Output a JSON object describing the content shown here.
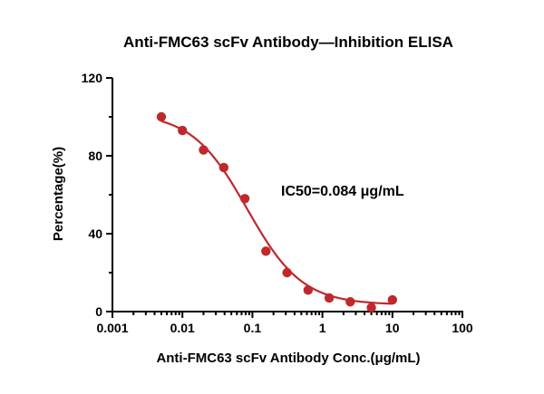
{
  "chart_data": {
    "type": "scatter",
    "title": "Anti-FMC63 scFv Antibody—Inhibition ELISA",
    "xlabel": "Anti-FMC63 scFv Antibody Conc.(μg/mL)",
    "ylabel": "Percentage(%)",
    "x_scale": "log",
    "xlim": [
      0.001,
      100
    ],
    "ylim": [
      0,
      120
    ],
    "x_ticks": [
      "0.001",
      "0.01",
      "0.1",
      "1",
      "10",
      "100"
    ],
    "x_tick_values": [
      0.001,
      0.01,
      0.1,
      1,
      10,
      100
    ],
    "y_ticks": [
      "0",
      "40",
      "80",
      "120"
    ],
    "y_tick_values": [
      0,
      40,
      80,
      120
    ],
    "grid": false,
    "series": [
      {
        "color": "#c0282d",
        "x": [
          0.005,
          0.01,
          0.02,
          0.039,
          0.078,
          0.156,
          0.3125,
          0.625,
          1.25,
          2.5,
          5,
          10
        ],
        "y": [
          100,
          93,
          83,
          74,
          58,
          31,
          20,
          11,
          7,
          5,
          2,
          6
        ],
        "fit": {
          "model": "4PL",
          "top": 102,
          "bottom": 3.5,
          "ic50": 0.084,
          "hill": 1.1
        }
      }
    ],
    "annotations": [
      {
        "text": "IC50=0.084 μg/mL"
      }
    ]
  }
}
